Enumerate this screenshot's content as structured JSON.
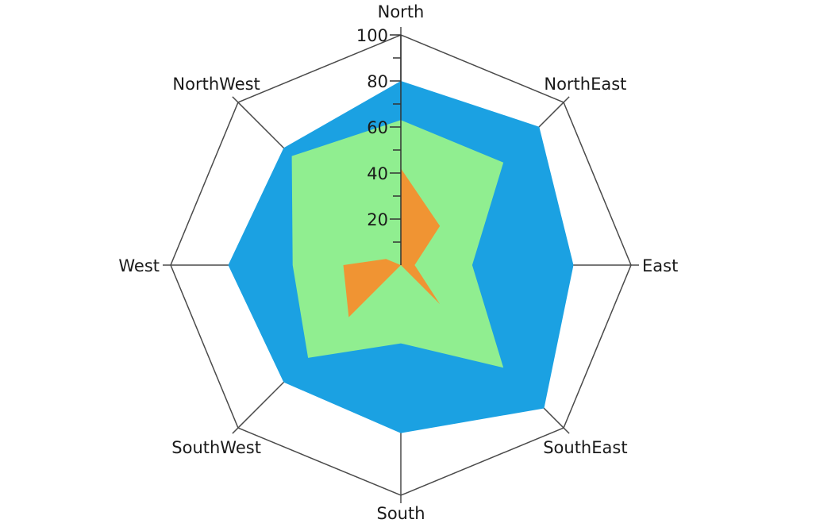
{
  "chart_data": {
    "type": "radar",
    "categories": [
      "North",
      "NorthEast",
      "East",
      "SouthEast",
      "South",
      "SouthWest",
      "West",
      "NorthWest"
    ],
    "radial_axis": {
      "range": [
        0,
        100
      ],
      "tick_labels": [
        "20",
        "40",
        "60",
        "80",
        "100"
      ],
      "tick_values": [
        20,
        40,
        60,
        80,
        100
      ],
      "minor_tick_step": 10
    },
    "grid": "octagon",
    "series": [
      {
        "color": "#1ba1e2",
        "values": [
          80,
          85,
          75,
          88,
          73,
          72,
          75,
          72
        ]
      },
      {
        "color": "#90ee90",
        "values": [
          63,
          63,
          31,
          63,
          34,
          57,
          47,
          67
        ]
      },
      {
        "color": "#f09433",
        "values": [
          42,
          24,
          6,
          24,
          0,
          32,
          25,
          0
        ]
      }
    ],
    "secondary_points": {
      "2": [
        null,
        null,
        null,
        null,
        null,
        null,
        7,
        null
      ]
    }
  }
}
